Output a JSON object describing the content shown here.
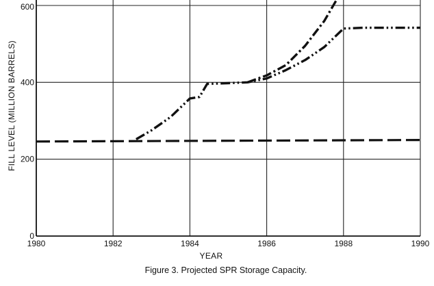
{
  "chart_data": {
    "type": "line",
    "title": "",
    "caption": "Figure 3.  Projected SPR Storage Capacity.",
    "xlabel": "YEAR",
    "ylabel": "FILL LEVEL (MILLION BARRELS)",
    "xlim": [
      1980,
      1990
    ],
    "ylim": [
      0,
      600
    ],
    "x_ticks": [
      1980,
      1982,
      1984,
      1986,
      1988,
      1990
    ],
    "y_ticks": [
      0,
      200,
      400,
      600
    ],
    "x_tick_labels": [
      "1980",
      "1982",
      "1984",
      "1986",
      "1988",
      "1990"
    ],
    "y_tick_labels": [
      "0",
      "200",
      "400",
      "600"
    ],
    "grid": true,
    "series": [
      {
        "style": "long-dash",
        "x": [
          1980,
          1990
        ],
        "y": [
          246,
          250
        ]
      },
      {
        "style": "dash-dot-dot",
        "x": [
          1982.6,
          1983.0,
          1983.5,
          1984.0,
          1984.25,
          1984.45,
          1985.0,
          1985.5,
          1986.0,
          1986.5,
          1987.0,
          1987.5,
          1988.0,
          1988.5,
          1989.0,
          1990.0
        ],
        "y": [
          252,
          275,
          310,
          358,
          362,
          396,
          398,
          400,
          410,
          432,
          458,
          492,
          540,
          542,
          542,
          542
        ]
      },
      {
        "style": "dash-dot",
        "x": [
          1985.5,
          1986.0,
          1986.5,
          1987.0,
          1987.5,
          1987.85
        ],
        "y": [
          400,
          418,
          445,
          495,
          560,
          620
        ]
      }
    ]
  }
}
